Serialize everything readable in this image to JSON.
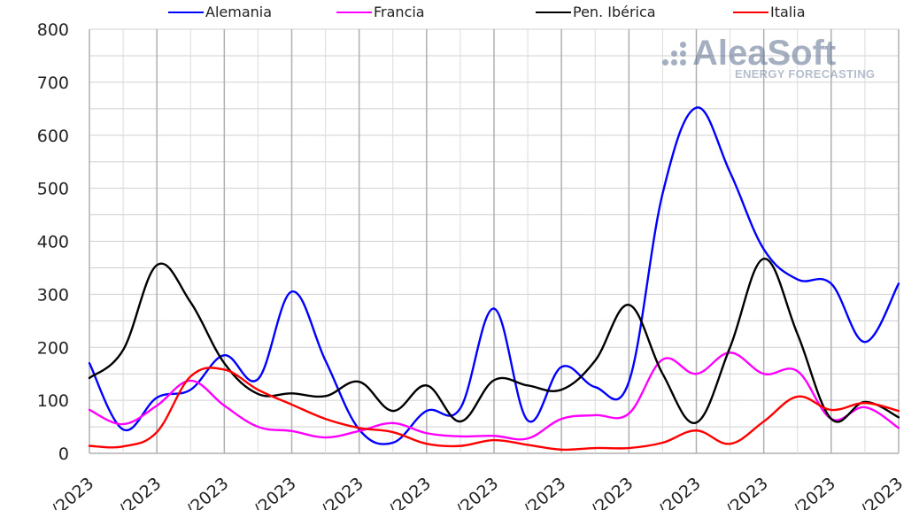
{
  "legend": [
    {
      "name": "Alemania",
      "color": "#0000ff"
    },
    {
      "name": "Francia",
      "color": "#ff00ff"
    },
    {
      "name": "Pen. Ibérica",
      "color": "#000000"
    },
    {
      "name": "Italia",
      "color": "#ff0000"
    }
  ],
  "watermark": {
    "brand": "AleaSoft",
    "tagline": "ENERGY FORECASTING",
    "logo_icon": "dots-logo-icon"
  },
  "chart_data": {
    "type": "line",
    "title": "",
    "xlabel": "",
    "ylabel": "",
    "ylim": [
      0,
      800
    ],
    "yticks": [
      "0",
      "100",
      "200",
      "300",
      "400",
      "500",
      "600",
      "700",
      "800"
    ],
    "xticks": [
      "/2023",
      "/2023",
      "/2023",
      "/2023",
      "/2023",
      "/2023",
      "/2023",
      "/2023",
      "/2023",
      "/2023",
      "/2023",
      "/2023",
      "/2023"
    ],
    "grid": true,
    "legend_position": "top",
    "series": [
      {
        "name": "Alemania",
        "color": "#0000ff",
        "values": [
          170,
          45,
          105,
          120,
          185,
          140,
          305,
          175,
          45,
          20,
          80,
          85,
          273,
          62,
          163,
          125,
          135,
          490,
          652,
          530,
          385,
          328,
          320,
          210,
          320
        ]
      },
      {
        "name": "Francia",
        "color": "#ff00ff",
        "values": [
          82,
          55,
          90,
          137,
          90,
          50,
          42,
          30,
          42,
          57,
          38,
          32,
          33,
          28,
          65,
          72,
          75,
          177,
          150,
          190,
          150,
          155,
          65,
          87,
          48
        ]
      },
      {
        "name": "Pen. Ibérica",
        "color": "#000000",
        "values": [
          142,
          195,
          355,
          285,
          170,
          112,
          113,
          108,
          135,
          80,
          128,
          60,
          138,
          128,
          120,
          175,
          280,
          150,
          58,
          200,
          367,
          225,
          65,
          97,
          68
        ]
      },
      {
        "name": "Italia",
        "color": "#ff0000",
        "values": [
          14,
          13,
          40,
          145,
          158,
          120,
          92,
          65,
          48,
          40,
          18,
          14,
          25,
          16,
          7,
          10,
          10,
          20,
          43,
          18,
          60,
          107,
          82,
          95,
          80
        ]
      }
    ]
  }
}
